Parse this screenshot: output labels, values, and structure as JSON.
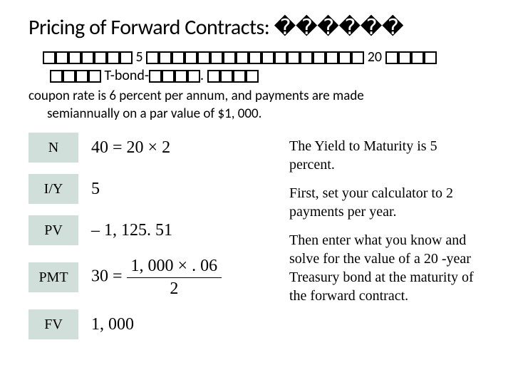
{
  "title": "Pricing of Forward Contracts: ������",
  "subline1_pre_boxes": 7,
  "subline1_mid1": " 5 ",
  "subline1_mid1_boxes": 7,
  "subline1_mid2": "",
  "subline1_mid2_boxes": 10,
  "subline1_after": " 20 ",
  "subline1_tail_boxes": 4,
  "subline2_pre_boxes": 4,
  "subline2_text": " T-bond-",
  "subline2_mid_boxes": 4,
  "subline2_dot": ". ",
  "subline2_tail_boxes": 4,
  "desc_l1": "coupon rate is 6 percent per annum, and payments are made",
  "desc_l2": "semiannually on a par value of $1, 000.",
  "rows": {
    "n": {
      "label": "N",
      "value": "40 = 20 × 2"
    },
    "iy": {
      "label": "I/Y",
      "value": "5"
    },
    "pv": {
      "label": "PV",
      "value": "– 1, 125. 51"
    },
    "pmt": {
      "label": "PMT",
      "value_prefix": "30 = ",
      "frac_num": "1, 000 × . 06",
      "frac_den": "2"
    },
    "fv": {
      "label": "FV",
      "value": "1, 000"
    }
  },
  "notes": {
    "p1": "The Yield to Maturity is 5 percent.",
    "p2": "First, set your calculator to 2 payments per year.",
    "p3": "Then enter what you know and solve for the value of a 20 -year Treasury bond at the maturity of the forward contract."
  },
  "style": {
    "key_bg": "#d1dfdb",
    "title_fontsize": 30,
    "val_fontsize": 24,
    "notes_fontsize": 20
  }
}
